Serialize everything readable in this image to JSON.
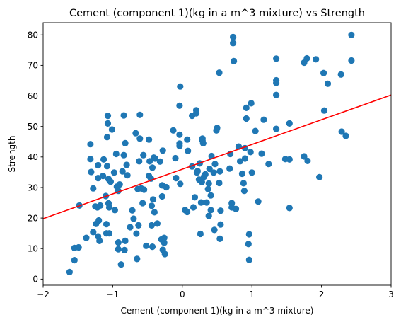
{
  "chart_data": {
    "type": "scatter",
    "title": "Cement (component 1)(kg in a m^3 mixture) vs Strength",
    "xlabel": "Cement (component 1)(kg in a m^3 mixture)",
    "ylabel": "Strength",
    "xlim": [
      -2,
      3
    ],
    "ylim": [
      -2,
      84
    ],
    "xticks": [
      -2,
      -1,
      0,
      1,
      2,
      3
    ],
    "yticks": [
      0,
      10,
      20,
      30,
      40,
      50,
      60,
      70,
      80
    ],
    "grid": false,
    "legend": "none",
    "colors": {
      "points": "#1f77b4",
      "fit_line": "#ff0000"
    },
    "fit_line": {
      "x": [
        -2,
        3
      ],
      "y": [
        19.8,
        60.3
      ]
    },
    "points": [
      [
        -1.62,
        2.3
      ],
      [
        -1.55,
        6.2
      ],
      [
        -1.55,
        10.2
      ],
      [
        -1.49,
        10.4
      ],
      [
        -1.48,
        24.1
      ],
      [
        -1.38,
        13.5
      ],
      [
        -1.32,
        44.2
      ],
      [
        -1.32,
        39.3
      ],
      [
        -1.31,
        35.1
      ],
      [
        -1.28,
        29.7
      ],
      [
        -1.28,
        15.4
      ],
      [
        -1.25,
        23.8
      ],
      [
        -1.24,
        18.1
      ],
      [
        -1.22,
        23.5
      ],
      [
        -1.21,
        37.3
      ],
      [
        -1.21,
        33.1
      ],
      [
        -1.21,
        14.0
      ],
      [
        -1.2,
        19.2
      ],
      [
        -1.19,
        12.5
      ],
      [
        -1.18,
        24.1
      ],
      [
        -1.14,
        33.8
      ],
      [
        -1.13,
        39.2
      ],
      [
        -1.1,
        27.2
      ],
      [
        -1.09,
        15.0
      ],
      [
        -1.09,
        18.0
      ],
      [
        -1.08,
        37.0
      ],
      [
        -1.08,
        46.5
      ],
      [
        -1.07,
        53.5
      ],
      [
        -1.07,
        51.0
      ],
      [
        -1.06,
        32.8
      ],
      [
        -1.06,
        24.8
      ],
      [
        -1.05,
        23.5
      ],
      [
        -1.05,
        15.0
      ],
      [
        -1.03,
        31.9
      ],
      [
        -1.01,
        49.0
      ],
      [
        -0.98,
        34.9
      ],
      [
        -0.97,
        22.6
      ],
      [
        -0.95,
        41.0
      ],
      [
        -0.94,
        30.3
      ],
      [
        -0.92,
        28.9
      ],
      [
        -0.92,
        12.0
      ],
      [
        -0.92,
        9.8
      ],
      [
        -0.9,
        31.0
      ],
      [
        -0.88,
        4.8
      ],
      [
        -0.86,
        35.3
      ],
      [
        -0.84,
        53.6
      ],
      [
        -0.84,
        40.6
      ],
      [
        -0.83,
        9.5
      ],
      [
        -0.82,
        44.5
      ],
      [
        -0.82,
        12.5
      ],
      [
        -0.8,
        37.4
      ],
      [
        -0.79,
        34.0
      ],
      [
        -0.75,
        17.0
      ],
      [
        -0.72,
        22.5
      ],
      [
        -0.7,
        19.8
      ],
      [
        -0.67,
        47.8
      ],
      [
        -0.66,
        14.9
      ],
      [
        -0.65,
        6.6
      ],
      [
        -0.64,
        29.5
      ],
      [
        -0.63,
        17.6
      ],
      [
        -0.62,
        38.6
      ],
      [
        -0.61,
        46.0
      ],
      [
        -0.61,
        53.8
      ],
      [
        -0.59,
        29.7
      ],
      [
        -0.57,
        24.9
      ],
      [
        -0.56,
        40.6
      ],
      [
        -0.55,
        29.3
      ],
      [
        -0.52,
        10.9
      ],
      [
        -0.48,
        45.7
      ],
      [
        -0.48,
        33.8
      ],
      [
        -0.47,
        38.6
      ],
      [
        -0.45,
        32.9
      ],
      [
        -0.44,
        17.6
      ],
      [
        -0.44,
        24.0
      ],
      [
        -0.43,
        36.5
      ],
      [
        -0.43,
        10.6
      ],
      [
        -0.42,
        26.1
      ],
      [
        -0.41,
        39.8
      ],
      [
        -0.4,
        21.9
      ],
      [
        -0.39,
        39.5
      ],
      [
        -0.36,
        18.2
      ],
      [
        -0.32,
        38.5
      ],
      [
        -0.3,
        13.0
      ],
      [
        -0.29,
        30.7
      ],
      [
        -0.29,
        27.1
      ],
      [
        -0.28,
        42.1
      ],
      [
        -0.28,
        9.6
      ],
      [
        -0.26,
        11.9
      ],
      [
        -0.26,
        13.5
      ],
      [
        -0.25,
        8.2
      ],
      [
        -0.23,
        30.1
      ],
      [
        -0.13,
        48.7
      ],
      [
        -0.1,
        39.6
      ],
      [
        -0.09,
        33.1
      ],
      [
        -0.04,
        47.3
      ],
      [
        -0.04,
        56.8
      ],
      [
        -0.04,
        44.4
      ],
      [
        -0.04,
        43.6
      ],
      [
        -0.03,
        63.1
      ],
      [
        -0.03,
        31.2
      ],
      [
        0.04,
        22.6
      ],
      [
        0.07,
        45.7
      ],
      [
        0.07,
        22.0
      ],
      [
        0.08,
        42.0
      ],
      [
        0.14,
        53.5
      ],
      [
        0.14,
        36.9
      ],
      [
        0.16,
        23.5
      ],
      [
        0.18,
        26.8
      ],
      [
        0.2,
        55.3
      ],
      [
        0.2,
        54.3
      ],
      [
        0.21,
        34.9
      ],
      [
        0.22,
        35.4
      ],
      [
        0.24,
        32.6
      ],
      [
        0.25,
        37.9
      ],
      [
        0.26,
        14.8
      ],
      [
        0.27,
        25.1
      ],
      [
        0.28,
        31.8
      ],
      [
        0.29,
        45.4
      ],
      [
        0.29,
        46.0
      ],
      [
        0.3,
        44.5
      ],
      [
        0.31,
        33.5
      ],
      [
        0.33,
        34.3
      ],
      [
        0.35,
        25.1
      ],
      [
        0.37,
        29.5
      ],
      [
        0.38,
        31.3
      ],
      [
        0.38,
        20.7
      ],
      [
        0.39,
        36.1
      ],
      [
        0.41,
        27.4
      ],
      [
        0.41,
        22.6
      ],
      [
        0.42,
        40.3
      ],
      [
        0.45,
        34.9
      ],
      [
        0.46,
        16.1
      ],
      [
        0.47,
        37.7
      ],
      [
        0.49,
        48.7
      ],
      [
        0.5,
        49.5
      ],
      [
        0.53,
        67.6
      ],
      [
        0.53,
        31.5
      ],
      [
        0.54,
        35.3
      ],
      [
        0.54,
        13.2
      ],
      [
        0.55,
        22.4
      ],
      [
        0.55,
        17.9
      ],
      [
        0.68,
        36.2
      ],
      [
        0.69,
        41.0
      ],
      [
        0.71,
        24.9
      ],
      [
        0.71,
        23.5
      ],
      [
        0.73,
        79.3
      ],
      [
        0.73,
        77.3
      ],
      [
        0.74,
        71.4
      ],
      [
        0.77,
        23.0
      ],
      [
        0.81,
        43.4
      ],
      [
        0.83,
        38.6
      ],
      [
        0.86,
        34.5
      ],
      [
        0.88,
        31.4
      ],
      [
        0.89,
        28.9
      ],
      [
        0.9,
        39.5
      ],
      [
        0.9,
        42.9
      ],
      [
        0.92,
        52.6
      ],
      [
        0.92,
        56.1
      ],
      [
        0.95,
        11.5
      ],
      [
        0.96,
        14.7
      ],
      [
        0.96,
        6.3
      ],
      [
        0.98,
        41.6
      ],
      [
        0.99,
        57.6
      ],
      [
        1.0,
        34.9
      ],
      [
        1.05,
        48.5
      ],
      [
        1.09,
        25.4
      ],
      [
        1.14,
        41.1
      ],
      [
        1.17,
        52.2
      ],
      [
        1.24,
        37.7
      ],
      [
        1.35,
        72.2
      ],
      [
        1.35,
        65.1
      ],
      [
        1.35,
        64.3
      ],
      [
        1.35,
        60.3
      ],
      [
        1.35,
        49.2
      ],
      [
        1.48,
        39.3
      ],
      [
        1.54,
        39.2
      ],
      [
        1.54,
        51.0
      ],
      [
        1.54,
        23.3
      ],
      [
        1.75,
        70.9
      ],
      [
        1.75,
        40.2
      ],
      [
        1.79,
        72.3
      ],
      [
        1.8,
        38.7
      ],
      [
        1.92,
        72.0
      ],
      [
        1.97,
        33.4
      ],
      [
        2.03,
        67.5
      ],
      [
        2.04,
        55.2
      ],
      [
        2.09,
        64.0
      ],
      [
        2.28,
        67.0
      ],
      [
        2.29,
        48.3
      ],
      [
        2.35,
        46.9
      ],
      [
        2.43,
        80.0
      ],
      [
        2.43,
        71.6
      ]
    ]
  }
}
